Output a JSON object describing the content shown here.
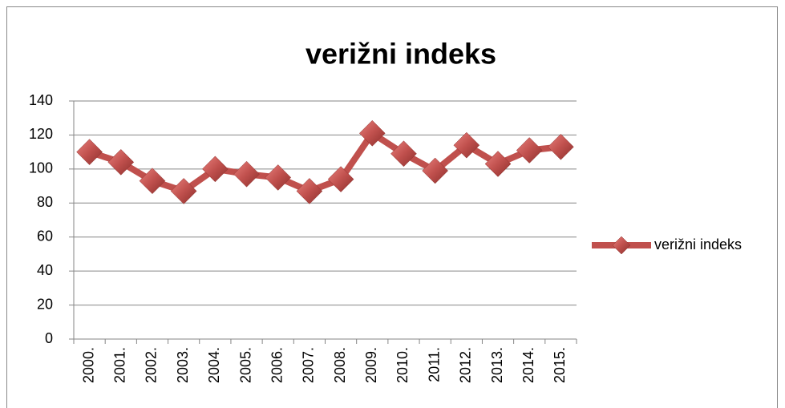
{
  "chart_data": {
    "type": "line",
    "title": "verižni indeks",
    "categories": [
      "2000.",
      "2001.",
      "2002.",
      "2003.",
      "2004.",
      "2005.",
      "2006.",
      "2007.",
      "2008.",
      "2009.",
      "2010.",
      "2011.",
      "2012.",
      "2013.",
      "2014.",
      "2015."
    ],
    "series": [
      {
        "name": "verižni indeks",
        "color": "#c0504d",
        "values": [
          110,
          104,
          93,
          87,
          100,
          97,
          95,
          87,
          94,
          121,
          109,
          99,
          114,
          103,
          111,
          113
        ]
      }
    ],
    "ylim": [
      0,
      140
    ],
    "yticks": [
      0,
      20,
      40,
      60,
      80,
      100,
      120,
      140
    ],
    "grid": true,
    "legend": "right"
  }
}
